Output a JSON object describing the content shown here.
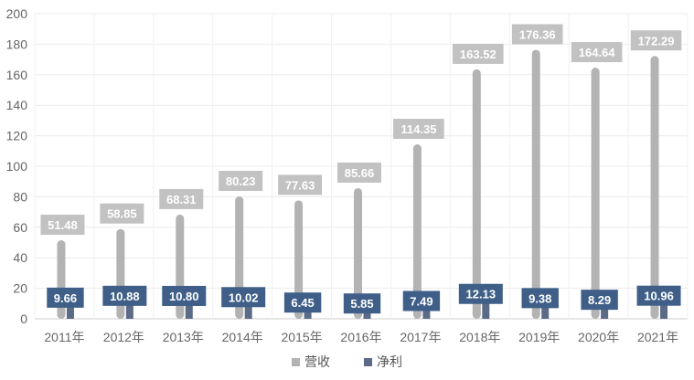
{
  "chart_data": {
    "type": "bar",
    "categories": [
      "2011年",
      "2012年",
      "2013年",
      "2014年",
      "2015年",
      "2016年",
      "2017年",
      "2018年",
      "2019年",
      "2020年",
      "2021年"
    ],
    "series": [
      {
        "name": "营收",
        "values": [
          51.48,
          58.85,
          68.31,
          80.23,
          77.63,
          85.66,
          114.35,
          163.52,
          176.36,
          164.64,
          172.29
        ],
        "color": "#b3b3b3"
      },
      {
        "name": "净利",
        "values": [
          9.66,
          10.88,
          10.8,
          10.02,
          6.45,
          5.85,
          7.49,
          12.13,
          9.38,
          8.29,
          10.96
        ],
        "color": "#5b6a86"
      }
    ],
    "label_colors": {
      "营收": "#c2c2c2",
      "净利": "#3f5f88"
    },
    "yticks": [
      0,
      20,
      40,
      60,
      80,
      100,
      120,
      140,
      160,
      180,
      200
    ],
    "ylim": [
      0,
      200
    ],
    "grid": true,
    "legend_position": "bottom"
  }
}
